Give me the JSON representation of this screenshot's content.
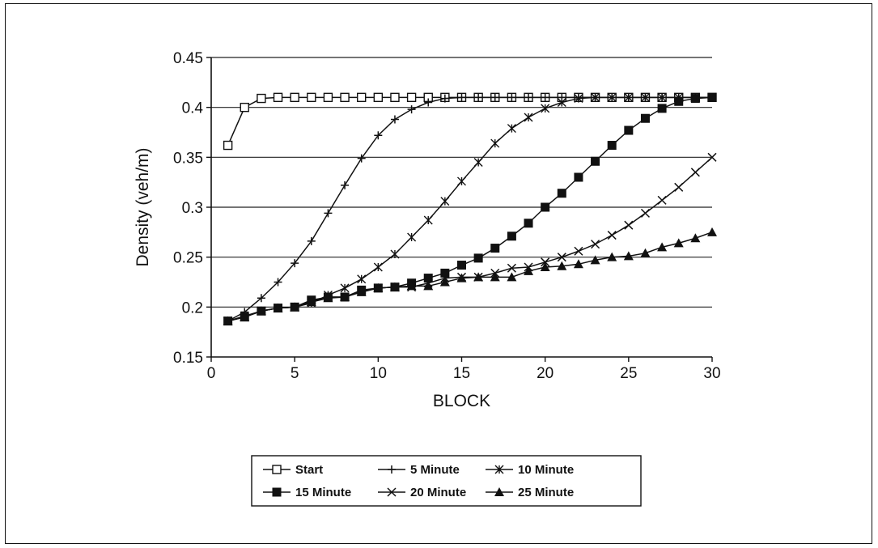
{
  "chart_data": {
    "type": "line",
    "xlabel": "BLOCK",
    "ylabel": "Density (veh/m)",
    "xlim": [
      0,
      30
    ],
    "ylim": [
      0.15,
      0.45
    ],
    "x_ticks": [
      "0",
      "5",
      "10",
      "15",
      "20",
      "25",
      "30"
    ],
    "y_ticks": [
      "0.15",
      "0.2",
      "0.25",
      "0.3",
      "0.35",
      "0.4",
      "0.45"
    ],
    "grid": "horizontal",
    "legend_position": "bottom",
    "x": [
      1,
      2,
      3,
      4,
      5,
      6,
      7,
      8,
      9,
      10,
      11,
      12,
      13,
      14,
      15,
      16,
      17,
      18,
      19,
      20,
      21,
      22,
      23,
      24,
      25,
      26,
      27,
      28,
      29,
      30
    ],
    "series": [
      {
        "name": "Start",
        "marker": "open-square",
        "values": [
          0.362,
          0.4,
          0.409,
          0.41,
          0.41,
          0.41,
          0.41,
          0.41,
          0.41,
          0.41,
          0.41,
          0.41,
          0.41,
          0.41,
          0.41,
          0.41,
          0.41,
          0.41,
          0.41,
          0.41,
          0.41,
          0.41,
          0.41,
          0.41,
          0.41,
          0.41,
          0.41,
          0.41,
          0.41,
          0.41
        ]
      },
      {
        "name": "5 Minute",
        "marker": "plus",
        "values": [
          0.186,
          0.195,
          0.209,
          0.225,
          0.244,
          0.266,
          0.294,
          0.322,
          0.349,
          0.372,
          0.388,
          0.398,
          0.405,
          0.409,
          0.41,
          0.41,
          0.41,
          0.41,
          0.41,
          0.41,
          0.41,
          0.41,
          0.41,
          0.41,
          0.41,
          0.41,
          0.41,
          0.41,
          0.41,
          0.41
        ]
      },
      {
        "name": "10 Minute",
        "marker": "star",
        "values": [
          0.186,
          0.191,
          0.196,
          0.199,
          0.2,
          0.204,
          0.212,
          0.219,
          0.228,
          0.24,
          0.253,
          0.27,
          0.287,
          0.306,
          0.326,
          0.345,
          0.364,
          0.379,
          0.39,
          0.399,
          0.405,
          0.409,
          0.41,
          0.41,
          0.41,
          0.41,
          0.41,
          0.41,
          0.41,
          0.41
        ]
      },
      {
        "name": "15 Minute",
        "marker": "filled-square",
        "values": [
          0.186,
          0.19,
          0.196,
          0.199,
          0.2,
          0.207,
          0.21,
          0.21,
          0.217,
          0.219,
          0.22,
          0.224,
          0.229,
          0.234,
          0.242,
          0.249,
          0.259,
          0.271,
          0.284,
          0.3,
          0.314,
          0.33,
          0.346,
          0.362,
          0.377,
          0.389,
          0.399,
          0.406,
          0.409,
          0.41
        ]
      },
      {
        "name": "20 Minute",
        "marker": "x",
        "values": [
          0.186,
          0.19,
          0.196,
          0.199,
          0.2,
          0.206,
          0.21,
          0.21,
          0.216,
          0.219,
          0.22,
          0.22,
          0.224,
          0.229,
          0.23,
          0.23,
          0.234,
          0.239,
          0.24,
          0.245,
          0.25,
          0.256,
          0.263,
          0.272,
          0.282,
          0.294,
          0.307,
          0.32,
          0.335,
          0.35
        ]
      },
      {
        "name": "25 Minute",
        "marker": "filled-triangle",
        "values": [
          0.186,
          0.19,
          0.196,
          0.199,
          0.2,
          0.205,
          0.209,
          0.21,
          0.215,
          0.219,
          0.22,
          0.221,
          0.221,
          0.225,
          0.229,
          0.23,
          0.23,
          0.23,
          0.236,
          0.24,
          0.241,
          0.243,
          0.247,
          0.25,
          0.251,
          0.254,
          0.26,
          0.264,
          0.269,
          0.275
        ]
      }
    ]
  },
  "legend": {
    "entries": [
      "Start",
      "5 Minute",
      "10 Minute",
      "15 Minute",
      "20 Minute",
      "25 Minute"
    ]
  }
}
